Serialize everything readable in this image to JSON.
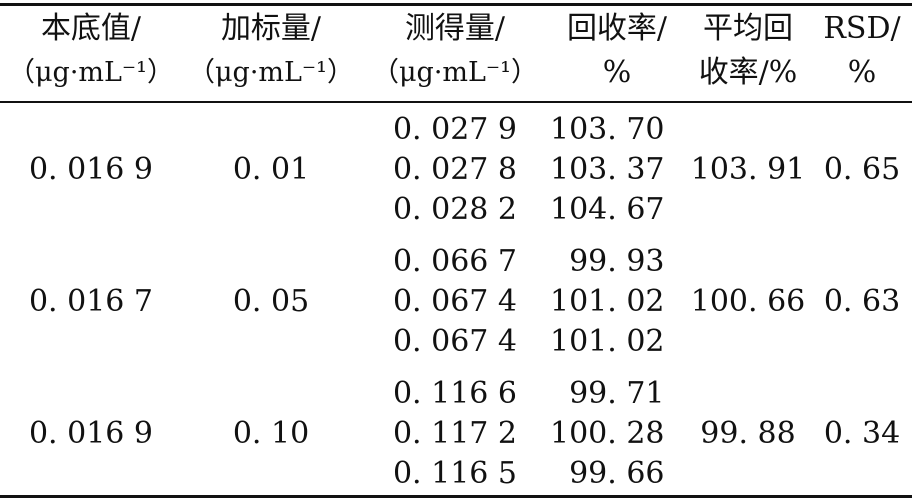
{
  "table": {
    "headers": [
      {
        "line1": "本底值/",
        "line2": "（μg·mL⁻¹）"
      },
      {
        "line1": "加标量/",
        "line2": "（μg·mL⁻¹）"
      },
      {
        "line1": "测得量/",
        "line2": "（μg·mL⁻¹）"
      },
      {
        "line1": "回收率/",
        "line2": "%"
      },
      {
        "line1": "平均回",
        "line2": "收率/%"
      },
      {
        "line1": "RSD/",
        "line2": "%"
      }
    ],
    "groups": [
      {
        "background": "0. 016 9",
        "spiked": "0. 01",
        "measured": [
          "0. 027 9",
          "0. 027 8",
          "0. 028 2"
        ],
        "recovery": [
          "103. 70",
          "103. 37",
          "104. 67"
        ],
        "avg_recovery": "103. 91",
        "rsd": "0. 65"
      },
      {
        "background": "0. 016 7",
        "spiked": "0. 05",
        "measured": [
          "0. 066 7",
          "0. 067 4",
          "0. 067 4"
        ],
        "recovery": [
          "99. 93",
          "101. 02",
          "101. 02"
        ],
        "avg_recovery": "100. 66",
        "rsd": "0. 63"
      },
      {
        "background": "0. 016 9",
        "spiked": "0. 10",
        "measured": [
          "0. 116 6",
          "0. 117 2",
          "0. 116 5"
        ],
        "recovery": [
          "99. 71",
          "100. 28",
          "99. 66"
        ],
        "avg_recovery": "99. 88",
        "rsd": "0. 34"
      }
    ]
  }
}
